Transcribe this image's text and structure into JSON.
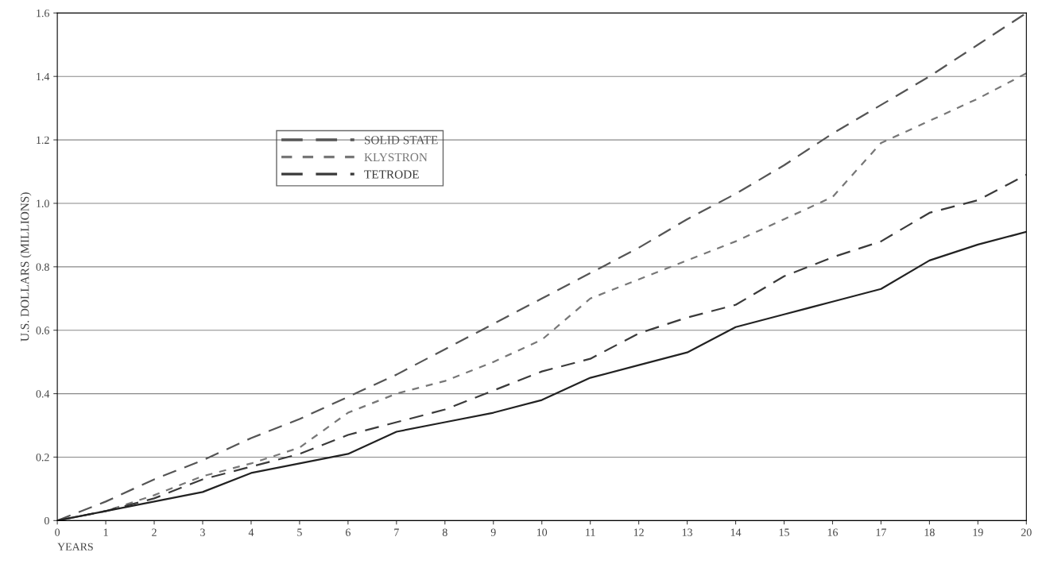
{
  "chart_data": {
    "type": "line",
    "xlabel": "YEARS",
    "ylabel": "U.S. DOLLARS (MILLIONS)",
    "x": [
      0,
      1,
      2,
      3,
      4,
      5,
      6,
      7,
      8,
      9,
      10,
      11,
      12,
      13,
      14,
      15,
      16,
      17,
      18,
      19,
      20
    ],
    "series": [
      {
        "name": "SOLID STATE",
        "color": "#555555",
        "line_style": "dashed",
        "values": [
          0,
          0.06,
          0.13,
          0.19,
          0.26,
          0.32,
          0.39,
          0.46,
          0.54,
          0.62,
          0.7,
          0.78,
          0.86,
          0.95,
          1.03,
          1.12,
          1.22,
          1.31,
          1.4,
          1.5,
          1.6
        ]
      },
      {
        "name": "KLYSTRON",
        "color": "#777777",
        "line_style": "dotted",
        "values": [
          0,
          0.03,
          0.08,
          0.14,
          0.18,
          0.23,
          0.34,
          0.4,
          0.44,
          0.5,
          0.57,
          0.7,
          0.76,
          0.82,
          0.88,
          0.95,
          1.02,
          1.19,
          1.26,
          1.33,
          1.41
        ]
      },
      {
        "name": "TETRODE",
        "color": "#3a3a3a",
        "line_style": "dashed",
        "values": [
          0,
          0.03,
          0.07,
          0.13,
          0.17,
          0.21,
          0.27,
          0.31,
          0.35,
          0.41,
          0.47,
          0.51,
          0.59,
          0.64,
          0.68,
          0.77,
          0.83,
          0.88,
          0.97,
          1.01,
          1.09
        ]
      },
      {
        "color": "#222222",
        "line_style": "solid",
        "values": [
          0,
          0.03,
          0.06,
          0.09,
          0.15,
          0.18,
          0.21,
          0.28,
          0.31,
          0.34,
          0.38,
          0.45,
          0.49,
          0.53,
          0.61,
          0.65,
          0.69,
          0.73,
          0.82,
          0.87,
          0.91
        ]
      }
    ],
    "xlim": [
      0,
      20
    ],
    "xticks": [
      0,
      1,
      2,
      3,
      4,
      5,
      6,
      7,
      8,
      9,
      10,
      11,
      12,
      13,
      14,
      15,
      16,
      17,
      18,
      19,
      20
    ],
    "ylim": [
      0,
      1.6
    ],
    "yticks": [
      0,
      0.2,
      0.4,
      0.6,
      0.8,
      {
        "value": 1.0,
        "label": "1.0"
      },
      1.2,
      1.4,
      1.6
    ],
    "grid": "y",
    "legend": "upper left",
    "marker": "none"
  }
}
